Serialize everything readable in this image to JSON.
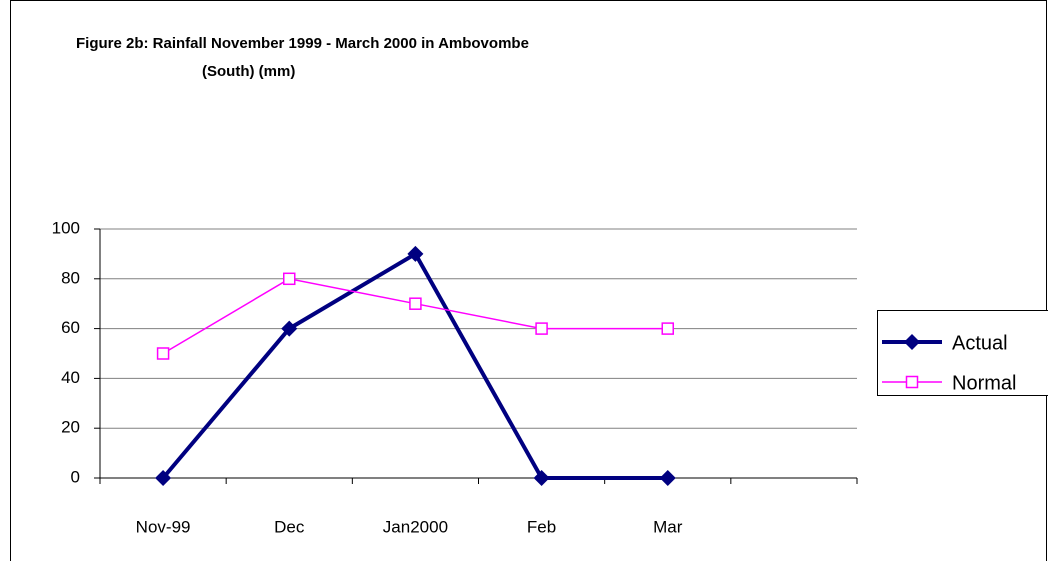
{
  "chart_data": {
    "type": "line",
    "title": [
      "Figure 2b:  Rainfall November 1999 -  March 2000 in Ambovombe",
      "(South) (mm)"
    ],
    "categories": [
      "Nov-99",
      "Dec",
      "Jan2000",
      "Feb",
      "Mar",
      null
    ],
    "series": [
      {
        "name": "Actual",
        "color": "#000080",
        "marker": "diamond",
        "values": [
          0,
          60,
          90,
          0,
          0,
          null
        ]
      },
      {
        "name": "Normal",
        "color": "#ff00ff",
        "marker": "square",
        "values": [
          50,
          80,
          70,
          60,
          60,
          null
        ]
      }
    ],
    "ylim": [
      0,
      100
    ],
    "yticks": [
      0,
      20,
      40,
      60,
      80,
      100
    ],
    "grid": true,
    "legend": "right"
  }
}
